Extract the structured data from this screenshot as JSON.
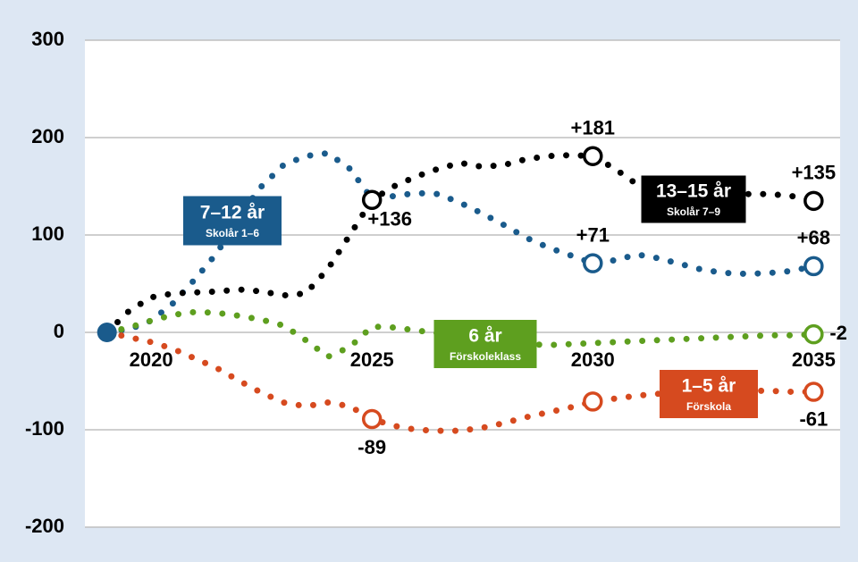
{
  "chart_data": {
    "type": "line",
    "x": [
      2019,
      2019.5,
      2020,
      2020.5,
      2021,
      2021.5,
      2022,
      2022.5,
      2023,
      2023.5,
      2024,
      2024.5,
      2025,
      2025.5,
      2026,
      2026.5,
      2027,
      2027.5,
      2028,
      2028.5,
      2029,
      2029.5,
      2030,
      2030.5,
      2031,
      2031.5,
      2032,
      2032.5,
      2033,
      2033.5,
      2034,
      2034.5,
      2035
    ],
    "xlim": [
      2018.5,
      2035.6
    ],
    "xticks": [
      2020,
      2025,
      2030,
      2035
    ],
    "ylim": [
      -200,
      300
    ],
    "yticks": [
      -200,
      -100,
      0,
      100,
      200,
      300
    ],
    "grid": true,
    "series": [
      {
        "name": "7–12 år",
        "sublabel": "Skolår 1–6",
        "color": "#1a5b8c",
        "values": [
          0,
          3,
          12,
          30,
          55,
          82,
          120,
          150,
          172,
          181,
          184,
          168,
          137,
          140,
          143,
          142,
          133,
          122,
          110,
          97,
          87,
          79,
          71,
          74,
          80,
          76,
          70,
          64,
          61,
          60,
          61,
          63,
          68
        ],
        "value_labels": [
          null,
          null,
          null,
          null,
          null,
          null,
          null,
          null,
          null,
          null,
          null,
          null,
          null,
          null,
          null,
          null,
          null,
          null,
          null,
          null,
          null,
          null,
          "+71",
          null,
          null,
          null,
          null,
          null,
          null,
          null,
          null,
          null,
          "+68"
        ]
      },
      {
        "name": "13–15 år",
        "sublabel": "Skolår 7–9",
        "color": "#000000",
        "values": [
          0,
          22,
          36,
          40,
          41,
          42,
          44,
          42,
          38,
          40,
          65,
          100,
          136,
          150,
          160,
          168,
          174,
          170,
          172,
          178,
          181,
          182,
          181,
          168,
          152,
          145,
          143,
          142,
          143,
          142,
          142,
          140,
          135
        ],
        "value_labels": [
          null,
          null,
          null,
          null,
          null,
          null,
          null,
          null,
          null,
          null,
          null,
          null,
          "+136",
          null,
          null,
          null,
          null,
          null,
          null,
          null,
          null,
          null,
          "+181",
          null,
          null,
          null,
          null,
          null,
          null,
          null,
          null,
          null,
          "+135"
        ]
      },
      {
        "name": "6 år",
        "sublabel": "Förskoleklass",
        "color": "#5e9f1f",
        "values": [
          0,
          5,
          12,
          18,
          21,
          20,
          17,
          13,
          7,
          -8,
          -25,
          -15,
          6,
          5,
          2,
          -1,
          -4,
          -8,
          -10,
          -12,
          -13,
          -12,
          -11,
          -10,
          -9,
          -8,
          -7,
          -6,
          -5,
          -4,
          -3,
          -3,
          -2
        ],
        "value_labels": [
          null,
          null,
          null,
          null,
          null,
          null,
          null,
          null,
          null,
          null,
          null,
          null,
          null,
          null,
          null,
          null,
          null,
          null,
          null,
          null,
          null,
          null,
          null,
          null,
          null,
          null,
          null,
          null,
          null,
          null,
          null,
          null,
          "-2"
        ]
      },
      {
        "name": "1–5 år",
        "sublabel": "Förskola",
        "color": "#d64a1f",
        "values": [
          0,
          -5,
          -10,
          -17,
          -27,
          -37,
          -50,
          -62,
          -72,
          -76,
          -72,
          -76,
          -89,
          -96,
          -100,
          -101,
          -101,
          -98,
          -93,
          -87,
          -82,
          -77,
          -71,
          -68,
          -65,
          -63,
          -61,
          -60,
          -60,
          -60,
          -60,
          -61,
          -61
        ],
        "value_labels": [
          null,
          null,
          null,
          null,
          null,
          null,
          null,
          null,
          null,
          null,
          null,
          null,
          "-89",
          null,
          null,
          null,
          null,
          null,
          null,
          null,
          null,
          null,
          null,
          null,
          null,
          null,
          null,
          null,
          null,
          null,
          null,
          null,
          "-61"
        ]
      }
    ]
  }
}
